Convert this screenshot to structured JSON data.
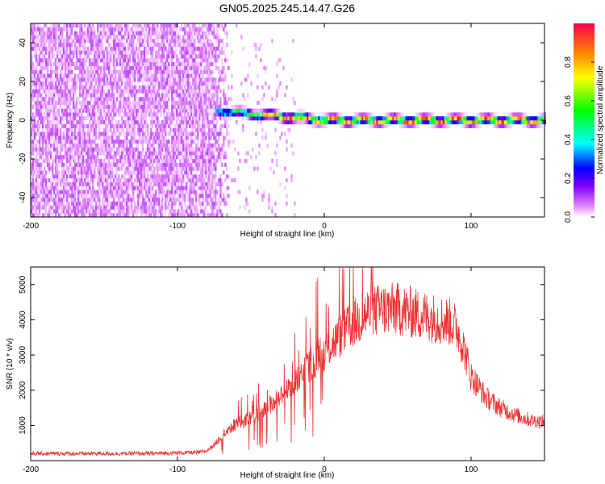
{
  "title": "GN05.2025.245.14.47.G26",
  "chart_data": [
    {
      "type": "heatmap",
      "xlabel": "Height of straight line (km)",
      "ylabel": "Frequency (Hz)",
      "xlim": [
        -200,
        150
      ],
      "ylim": [
        -50,
        50
      ],
      "x_ticks": [
        -200,
        -100,
        0,
        100
      ],
      "y_ticks": [
        -40,
        -20,
        0,
        20,
        40
      ],
      "noise_region": {
        "x": [
          -200,
          -65
        ],
        "y": [
          -50,
          50
        ]
      },
      "signal_ridge": {
        "x_start": -75,
        "x_end": 150,
        "frequency_start": 5,
        "frequency_end": 0,
        "peak_amplitude": 0.95
      },
      "colorbar": {
        "label": "Normalized spectral amplitude",
        "ticks": [
          0.0,
          0.2,
          0.4,
          0.6,
          0.8
        ],
        "range": [
          0,
          1
        ],
        "colors": [
          "#ffffff",
          "#e080ff",
          "#8000ff",
          "#0000ff",
          "#00ffff",
          "#00ff00",
          "#ffff00",
          "#ff8000",
          "#ff0000"
        ]
      }
    },
    {
      "type": "line",
      "xlabel": "Height of straight line (km)",
      "ylabel": "SNR (10 * v/v)",
      "xlim": [
        -200,
        150
      ],
      "ylim": [
        0,
        5500
      ],
      "x_ticks": [
        -200,
        -100,
        0,
        100
      ],
      "y_ticks": [
        1000,
        2000,
        3000,
        4000,
        5000
      ],
      "color": "#ee3333",
      "series": [
        {
          "x": [
            -200,
            -180,
            -160,
            -140,
            -120,
            -100,
            -85,
            -80,
            -75,
            -70,
            -65,
            -60,
            -50,
            -40,
            -30,
            -20,
            -10,
            0,
            10,
            20,
            30,
            40,
            50,
            60,
            70,
            80,
            85,
            90,
            95,
            100,
            110,
            120,
            130,
            140,
            150
          ],
          "values": [
            200,
            200,
            200,
            200,
            200,
            220,
            230,
            280,
            450,
            700,
            900,
            1050,
            1200,
            1500,
            1800,
            2200,
            2700,
            3100,
            3500,
            3900,
            4200,
            4300,
            4300,
            4200,
            4100,
            4000,
            3950,
            3800,
            3200,
            2400,
            1800,
            1500,
            1300,
            1150,
            1100
          ]
        }
      ]
    }
  ]
}
